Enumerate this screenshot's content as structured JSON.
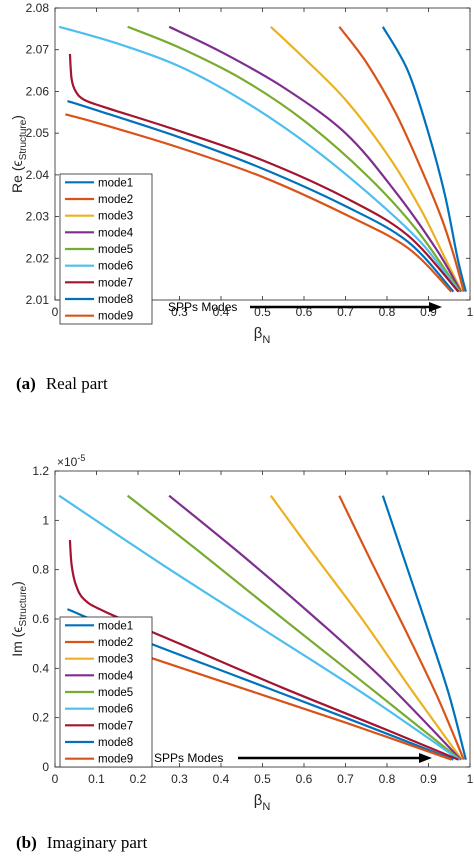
{
  "captions": [
    {
      "tag": "(a)",
      "text": "Real part"
    },
    {
      "tag": "(b)",
      "text": "Imaginary part"
    }
  ],
  "chart_data": [
    {
      "type": "line",
      "panel": "a",
      "ylabel": "Re (ϵ",
      "ylabel_sub": "Structure",
      "ylabel_end": ")",
      "xlabel": "β",
      "xlabel_sub": "N",
      "xlim": [
        0,
        1
      ],
      "ylim": [
        2.01,
        2.08
      ],
      "xticks": [
        "0",
        "0.1",
        "0.2",
        "0.3",
        "0.4",
        "0.5",
        "0.6",
        "0.7",
        "0.8",
        "0.9",
        "1"
      ],
      "yticks": [
        "2.01",
        "2.02",
        "2.03",
        "2.04",
        "2.05",
        "2.06",
        "2.07",
        "2.08"
      ],
      "exponent_label": "",
      "grid": false,
      "legend_position": "middle-left",
      "annotation": "SPPs Modes",
      "series": [
        {
          "name": "mode1",
          "color": "#0072BD",
          "x": [
            0.79,
            0.85,
            0.9,
            0.94,
            0.97,
            0.99
          ],
          "y": [
            2.0755,
            2.065,
            2.05,
            2.035,
            2.02,
            2.012
          ]
        },
        {
          "name": "mode2",
          "color": "#D95319",
          "x": [
            0.685,
            0.75,
            0.82,
            0.88,
            0.93,
            0.96,
            0.985
          ],
          "y": [
            2.0755,
            2.067,
            2.055,
            2.042,
            2.03,
            2.021,
            2.012
          ]
        },
        {
          "name": "mode3",
          "color": "#EDB120",
          "x": [
            0.52,
            0.6,
            0.7,
            0.8,
            0.88,
            0.94,
            0.98
          ],
          "y": [
            2.0755,
            2.068,
            2.058,
            2.045,
            2.032,
            2.02,
            2.012
          ]
        },
        {
          "name": "mode4",
          "color": "#7E2F8E",
          "x": [
            0.275,
            0.4,
            0.55,
            0.7,
            0.82,
            0.92,
            0.978
          ],
          "y": [
            2.0755,
            2.0695,
            2.061,
            2.05,
            2.036,
            2.022,
            2.012
          ]
        },
        {
          "name": "mode5",
          "color": "#77AC30",
          "x": [
            0.175,
            0.3,
            0.45,
            0.6,
            0.75,
            0.87,
            0.976
          ],
          "y": [
            2.0755,
            2.0705,
            2.063,
            2.053,
            2.04,
            2.027,
            2.012
          ]
        },
        {
          "name": "mode6",
          "color": "#4DBEEE",
          "x": [
            0.01,
            0.15,
            0.3,
            0.45,
            0.6,
            0.75,
            0.88,
            0.974
          ],
          "y": [
            2.0755,
            2.0715,
            2.066,
            2.058,
            2.048,
            2.036,
            2.024,
            2.012
          ]
        },
        {
          "name": "mode7",
          "color": "#A2142F",
          "x": [
            0.036,
            0.04,
            0.05,
            0.07,
            0.12,
            0.3,
            0.5,
            0.7,
            0.85,
            0.972
          ],
          "y": [
            2.069,
            2.063,
            2.06,
            2.058,
            2.0562,
            2.0505,
            2.0435,
            2.0345,
            2.0255,
            2.012
          ]
        },
        {
          "name": "mode8",
          "color": "#0072BD",
          "x": [
            0.03,
            0.1,
            0.3,
            0.5,
            0.7,
            0.85,
            0.96
          ],
          "y": [
            2.0577,
            2.0555,
            2.049,
            2.0415,
            2.0325,
            2.024,
            2.012
          ]
        },
        {
          "name": "mode9",
          "color": "#D95319",
          "x": [
            0.025,
            0.1,
            0.3,
            0.5,
            0.7,
            0.85,
            0.955
          ],
          "y": [
            2.0545,
            2.0525,
            2.0465,
            2.0395,
            2.0305,
            2.0225,
            2.012
          ]
        }
      ]
    },
    {
      "type": "line",
      "panel": "b",
      "ylabel": "Im (ϵ",
      "ylabel_sub": "Structure",
      "ylabel_end": ")",
      "xlabel": "β",
      "xlabel_sub": "N",
      "xlim": [
        0,
        1
      ],
      "ylim": [
        0,
        1.2
      ],
      "xticks": [
        "0",
        "0.1",
        "0.2",
        "0.3",
        "0.4",
        "0.5",
        "0.6",
        "0.7",
        "0.8",
        "0.9",
        "1"
      ],
      "yticks": [
        "0",
        "0.2",
        "0.4",
        "0.6",
        "0.8",
        "1",
        "1.2"
      ],
      "exponent_label": "×10",
      "exponent_power": "-5",
      "grid": false,
      "legend_position": "bottom-left",
      "annotation": "SPPs Modes",
      "series": [
        {
          "name": "mode1",
          "color": "#0072BD",
          "x": [
            0.79,
            0.85,
            0.9,
            0.95,
            0.99
          ],
          "y": [
            1.1,
            0.8,
            0.55,
            0.29,
            0.03
          ]
        },
        {
          "name": "mode2",
          "color": "#D95319",
          "x": [
            0.685,
            0.76,
            0.84,
            0.92,
            0.985
          ],
          "y": [
            1.1,
            0.84,
            0.57,
            0.29,
            0.03
          ]
        },
        {
          "name": "mode3",
          "color": "#EDB120",
          "x": [
            0.52,
            0.62,
            0.74,
            0.86,
            0.98
          ],
          "y": [
            1.1,
            0.87,
            0.6,
            0.31,
            0.03
          ]
        },
        {
          "name": "mode4",
          "color": "#7E2F8E",
          "x": [
            0.275,
            0.45,
            0.63,
            0.8,
            0.978
          ],
          "y": [
            1.1,
            0.86,
            0.6,
            0.34,
            0.03
          ]
        },
        {
          "name": "mode5",
          "color": "#77AC30",
          "x": [
            0.175,
            0.35,
            0.55,
            0.76,
            0.976
          ],
          "y": [
            1.1,
            0.87,
            0.6,
            0.32,
            0.03
          ]
        },
        {
          "name": "mode6",
          "color": "#4DBEEE",
          "x": [
            0.01,
            0.25,
            0.5,
            0.75,
            0.974
          ],
          "y": [
            1.1,
            0.83,
            0.56,
            0.29,
            0.03
          ]
        },
        {
          "name": "mode7",
          "color": "#A2142F",
          "x": [
            0.036,
            0.04,
            0.05,
            0.07,
            0.12,
            0.3,
            0.55,
            0.8,
            0.972
          ],
          "y": [
            0.92,
            0.82,
            0.74,
            0.68,
            0.63,
            0.5,
            0.32,
            0.15,
            0.03
          ]
        },
        {
          "name": "mode8",
          "color": "#0072BD",
          "x": [
            0.03,
            0.2,
            0.45,
            0.7,
            0.96
          ],
          "y": [
            0.64,
            0.52,
            0.36,
            0.2,
            0.03
          ]
        },
        {
          "name": "mode9",
          "color": "#D95319",
          "x": [
            0.025,
            0.2,
            0.45,
            0.7,
            0.955
          ],
          "y": [
            0.56,
            0.46,
            0.32,
            0.18,
            0.03
          ]
        }
      ]
    }
  ]
}
